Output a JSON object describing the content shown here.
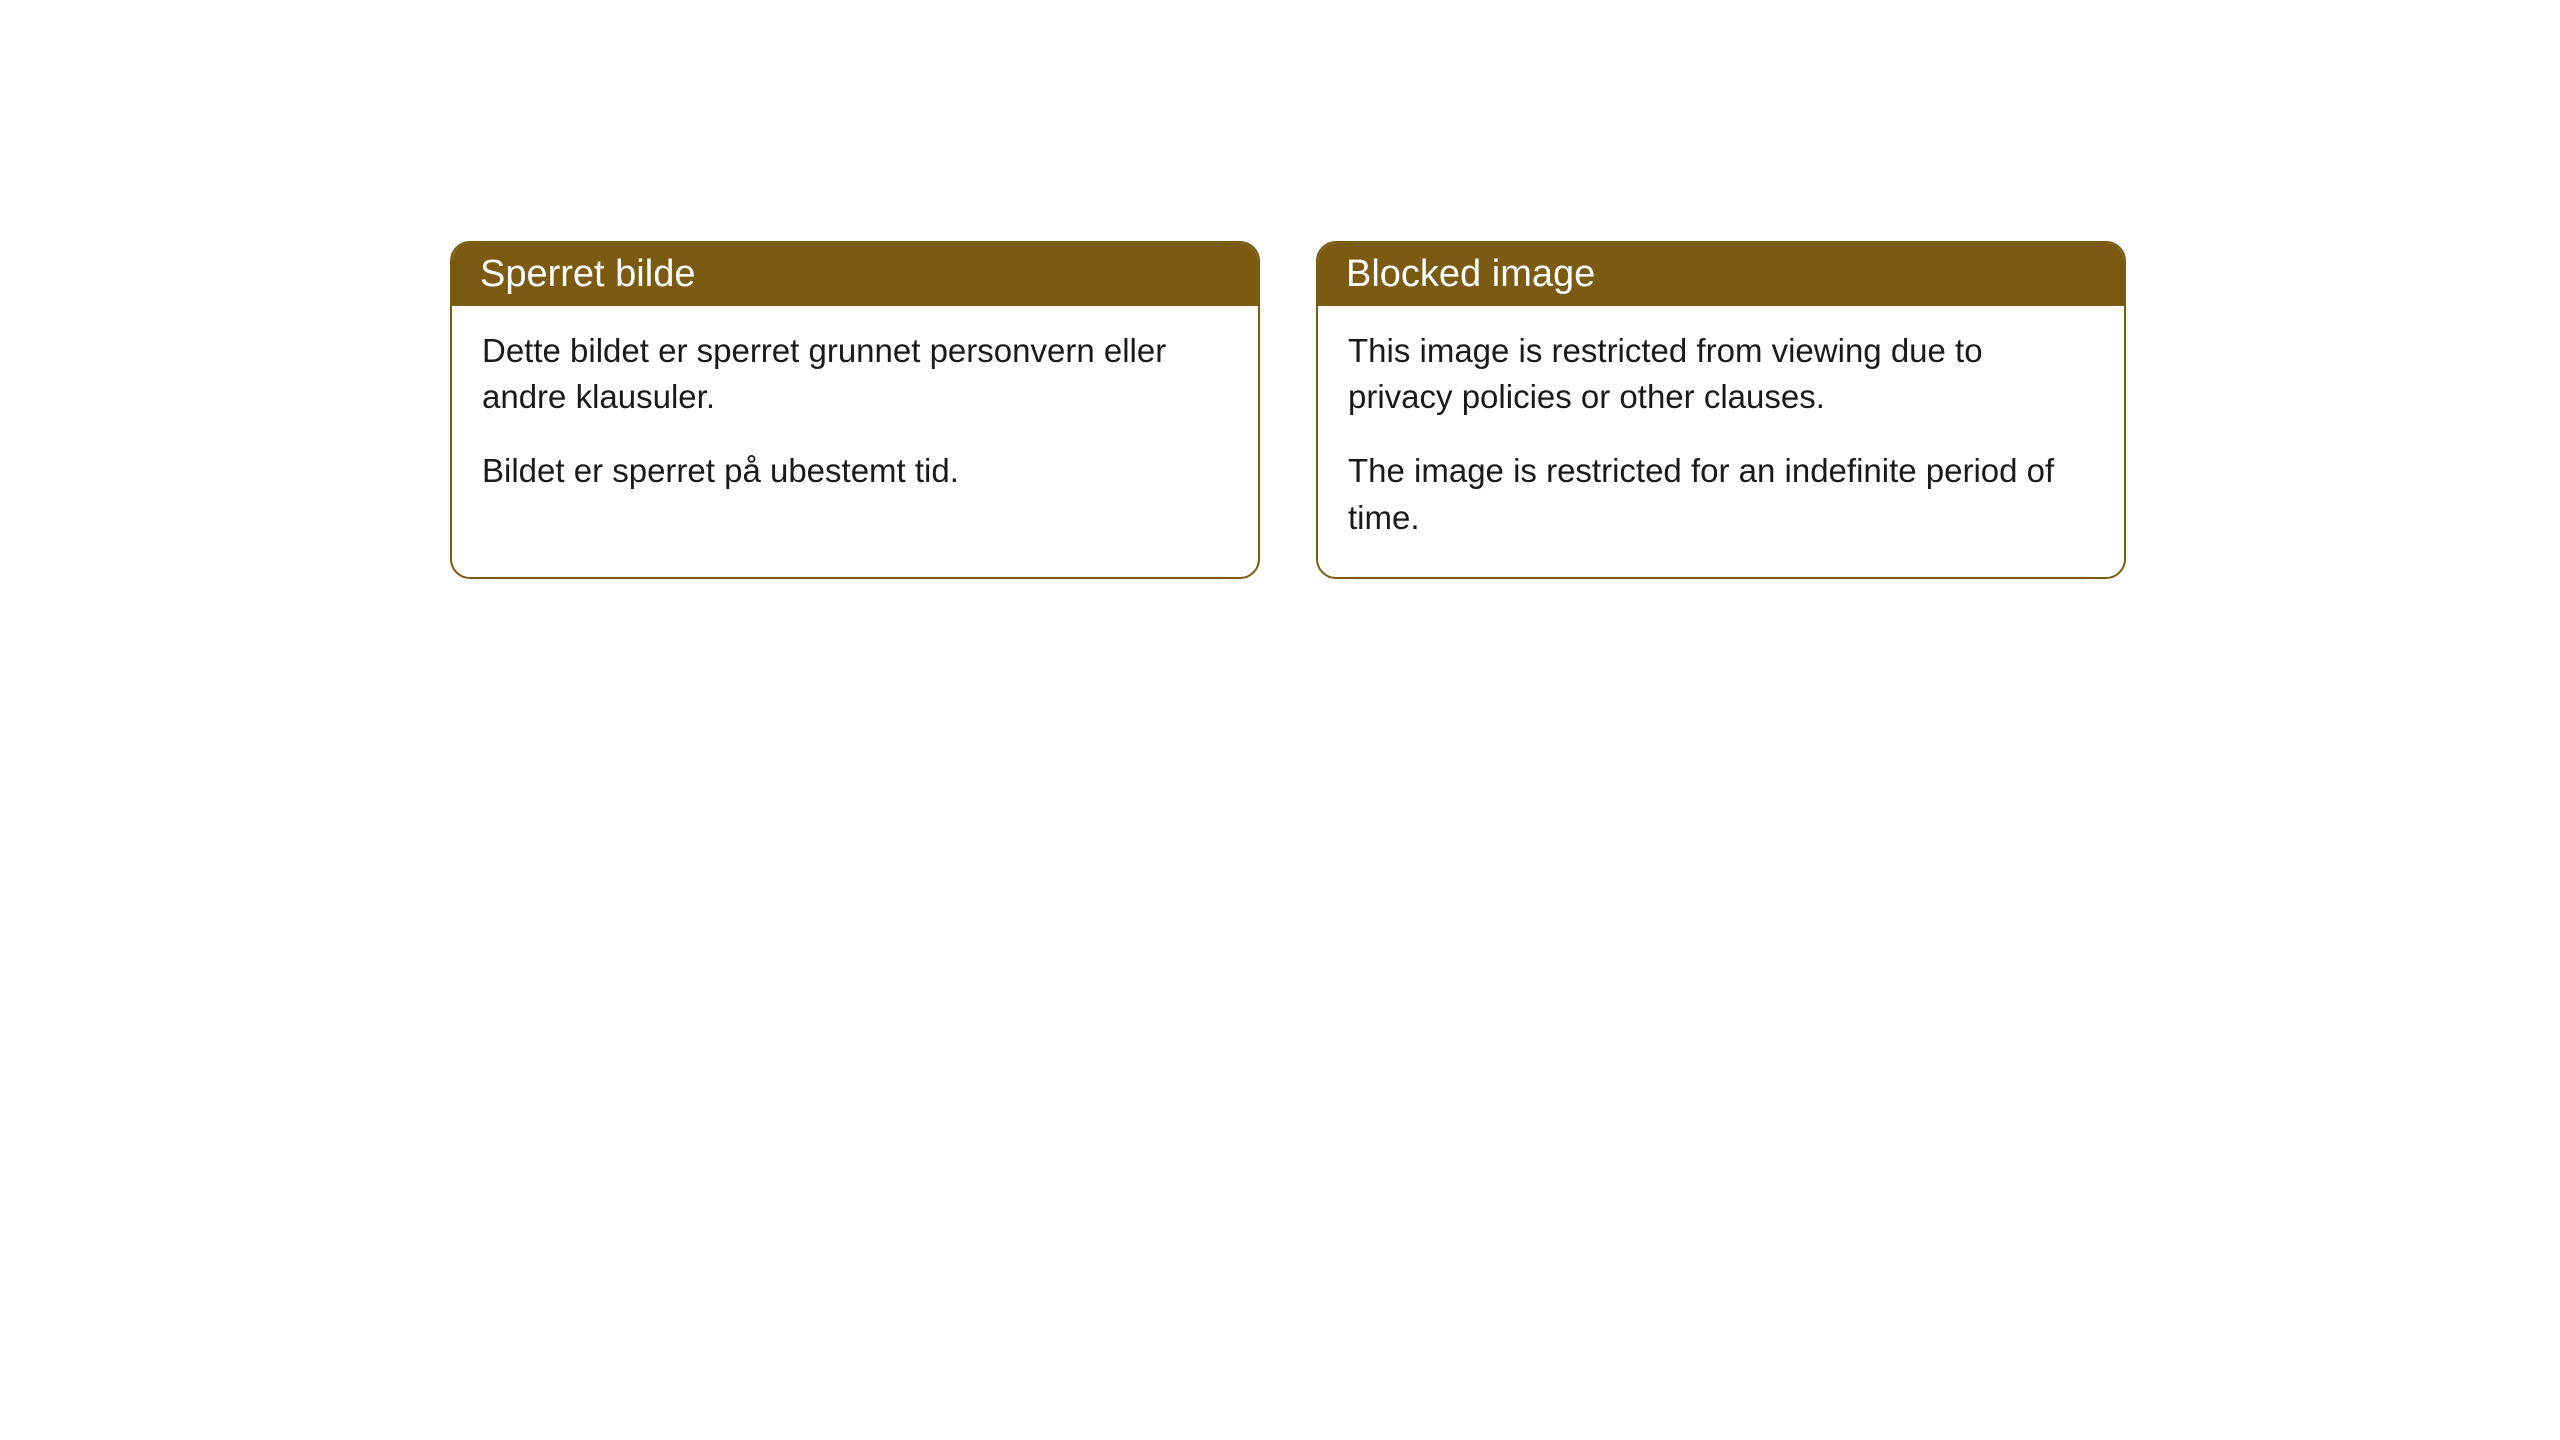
{
  "cards": [
    {
      "header": "Sperret bilde",
      "paragraphs": [
        "Dette bildet er sperret grunnet personvern eller andre klausuler.",
        "Bildet er sperret på ubestemt tid."
      ]
    },
    {
      "header": "Blocked image",
      "paragraphs": [
        "This image is restricted from viewing due to privacy policies or other clauses.",
        "The image is restricted for an indefinite period of time."
      ]
    }
  ],
  "colors": {
    "header_bg": "#7a5b11",
    "header_text": "#ffffff",
    "border": "#7a5b11",
    "body_text": "#1a1a1a",
    "page_bg": "#ffffff"
  }
}
